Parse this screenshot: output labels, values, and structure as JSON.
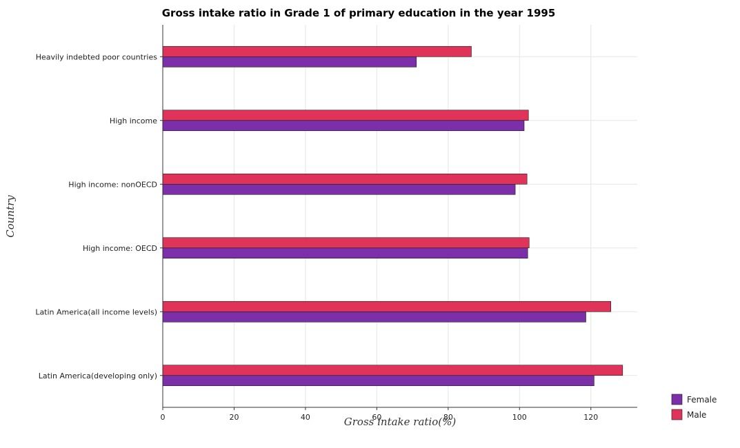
{
  "chart_data": {
    "type": "bar",
    "orientation": "horizontal",
    "title": "Gross intake ratio in Grade 1 of primary education in the year 1995",
    "xlabel": "Gross intake ratio(%)",
    "ylabel": "Country",
    "xlim": [
      0,
      133
    ],
    "xticks": [
      "0",
      "20",
      "40",
      "60",
      "80",
      "100",
      "120"
    ],
    "grid": true,
    "legend_position": "bottom-right",
    "categories": [
      "Heavily indebted poor countries",
      "High income",
      "High income: nonOECD",
      "High income: OECD",
      "Latin America(all income levels)",
      "Latin America(developing only)"
    ],
    "series": [
      {
        "name": "Female",
        "color": "#7b2fa8",
        "values": [
          71.1,
          101.3,
          98.8,
          102.3,
          118.6,
          120.9
        ]
      },
      {
        "name": "Male",
        "color": "#e0335a",
        "values": [
          86.5,
          102.5,
          102.1,
          102.7,
          125.6,
          128.9
        ]
      }
    ]
  }
}
